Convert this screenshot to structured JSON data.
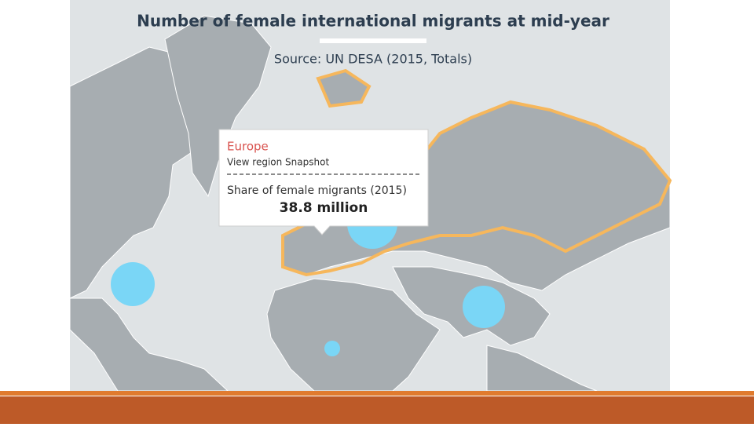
{
  "title": "Number of female international migrants at mid-year",
  "source": "Source: UN DESA (2015, Totals)",
  "tooltip": {
    "region": "Europe",
    "link": "View region Snapshot",
    "metric": "Share of female migrants (2015)",
    "value": "38.8 million"
  }
}
